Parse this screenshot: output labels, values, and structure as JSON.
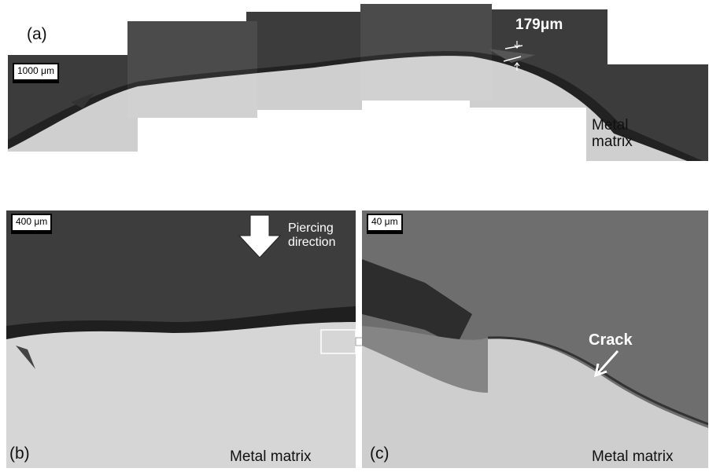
{
  "panels": [
    {
      "label": "(a)",
      "scale_bar": "1000 μm",
      "measurement": "179μm",
      "region_label": "Metal matrix"
    },
    {
      "label": "(b)",
      "scale_bar": "400 μm",
      "direction_label": "Piercing direction",
      "region_label": "Metal matrix"
    },
    {
      "label": "(c)",
      "scale_bar": "40 μm",
      "feature_label": "Crack",
      "region_label": "Metal matrix"
    }
  ]
}
